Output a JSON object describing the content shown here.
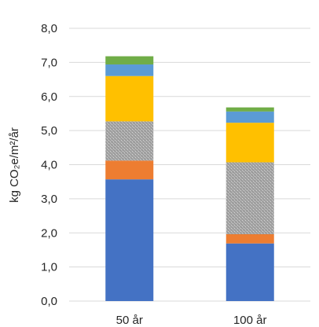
{
  "chart_data": {
    "type": "bar",
    "stacked": true,
    "categories": [
      "50 år",
      "100 år"
    ],
    "series": [
      {
        "color": "#4472c4",
        "values": [
          3.57,
          1.69
        ]
      },
      {
        "color": "#ed7d31",
        "values": [
          0.55,
          0.27
        ]
      },
      {
        "color": "#a5a5a5",
        "pattern": "dotted",
        "values": [
          1.15,
          2.11
        ]
      },
      {
        "color": "#ffc000",
        "values": [
          1.33,
          1.16
        ]
      },
      {
        "color": "#5b9bd5",
        "values": [
          0.34,
          0.33
        ]
      },
      {
        "color": "#70ad47",
        "values": [
          0.24,
          0.12
        ]
      }
    ],
    "ylabel": "kg CO₂e/m²/år",
    "ylim": [
      0,
      8
    ],
    "yticks": [
      "0,0",
      "1,0",
      "2,0",
      "3,0",
      "4,0",
      "5,0",
      "6,0",
      "7,0",
      "8,0"
    ],
    "grid": true,
    "legend": "none"
  }
}
